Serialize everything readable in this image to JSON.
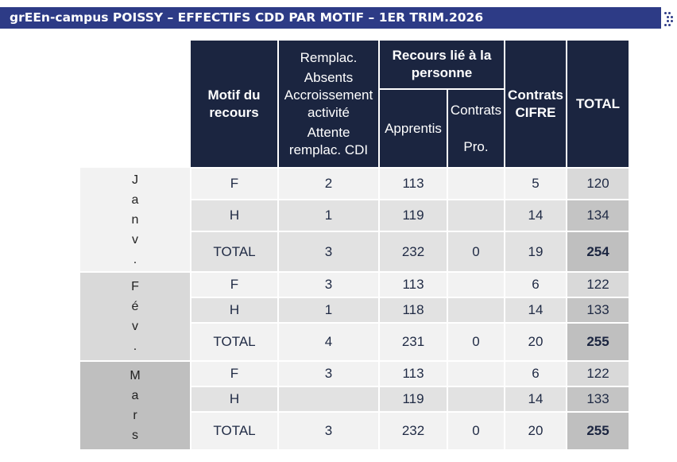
{
  "banner": {
    "title": "grEEn-campus POISSY – EFFECTIFS  CDD PAR MOTIF – 1ER TRIM.2026"
  },
  "header": {
    "motif": [
      "Motif du",
      "recours"
    ],
    "replacement": [
      "Remplac.",
      "Absents",
      "Accroissement",
      "activité",
      "Attente",
      "remplac. CDI"
    ],
    "recours_personne": [
      "Recours lié à la",
      "personne"
    ],
    "apprentis": "Apprentis",
    "contrats_pro": [
      "Contrats",
      "Pro."
    ],
    "cifre": [
      "Contrats",
      "CIFRE"
    ],
    "total": "TOTAL"
  },
  "months": [
    {
      "label_chars": [
        "J",
        "a",
        "n",
        "v",
        "."
      ],
      "rows": [
        {
          "motif": "F",
          "remplac": "2",
          "apprentis": "113",
          "contrats_pro": "",
          "cifre": "5",
          "total": "120"
        },
        {
          "motif": "H",
          "remplac": "1",
          "apprentis": "119",
          "contrats_pro": "",
          "cifre": "14",
          "total": "134"
        },
        {
          "motif": "TOTAL",
          "remplac": "3",
          "apprentis": "232",
          "contrats_pro": "0",
          "cifre": "19",
          "total": "254"
        }
      ]
    },
    {
      "label_chars": [
        "F",
        "é",
        "v",
        "."
      ],
      "rows": [
        {
          "motif": "F",
          "remplac": "3",
          "apprentis": "113",
          "contrats_pro": "",
          "cifre": "6",
          "total": "122"
        },
        {
          "motif": "H",
          "remplac": "1",
          "apprentis": "118",
          "contrats_pro": "",
          "cifre": "14",
          "total": "133"
        },
        {
          "motif": "TOTAL",
          "remplac": "4",
          "apprentis": "231",
          "contrats_pro": "0",
          "cifre": "20",
          "total": "255"
        }
      ]
    },
    {
      "label_chars": [
        "M",
        "a",
        "r",
        "s"
      ],
      "rows": [
        {
          "motif": "F",
          "remplac": "3",
          "apprentis": "113",
          "contrats_pro": "",
          "cifre": "6",
          "total": "122"
        },
        {
          "motif": "H",
          "remplac": "",
          "apprentis": "119",
          "contrats_pro": "",
          "cifre": "14",
          "total": "133"
        },
        {
          "motif": "TOTAL",
          "remplac": "3",
          "apprentis": "232",
          "contrats_pro": "0",
          "cifre": "20",
          "total": "255"
        }
      ]
    }
  ]
}
